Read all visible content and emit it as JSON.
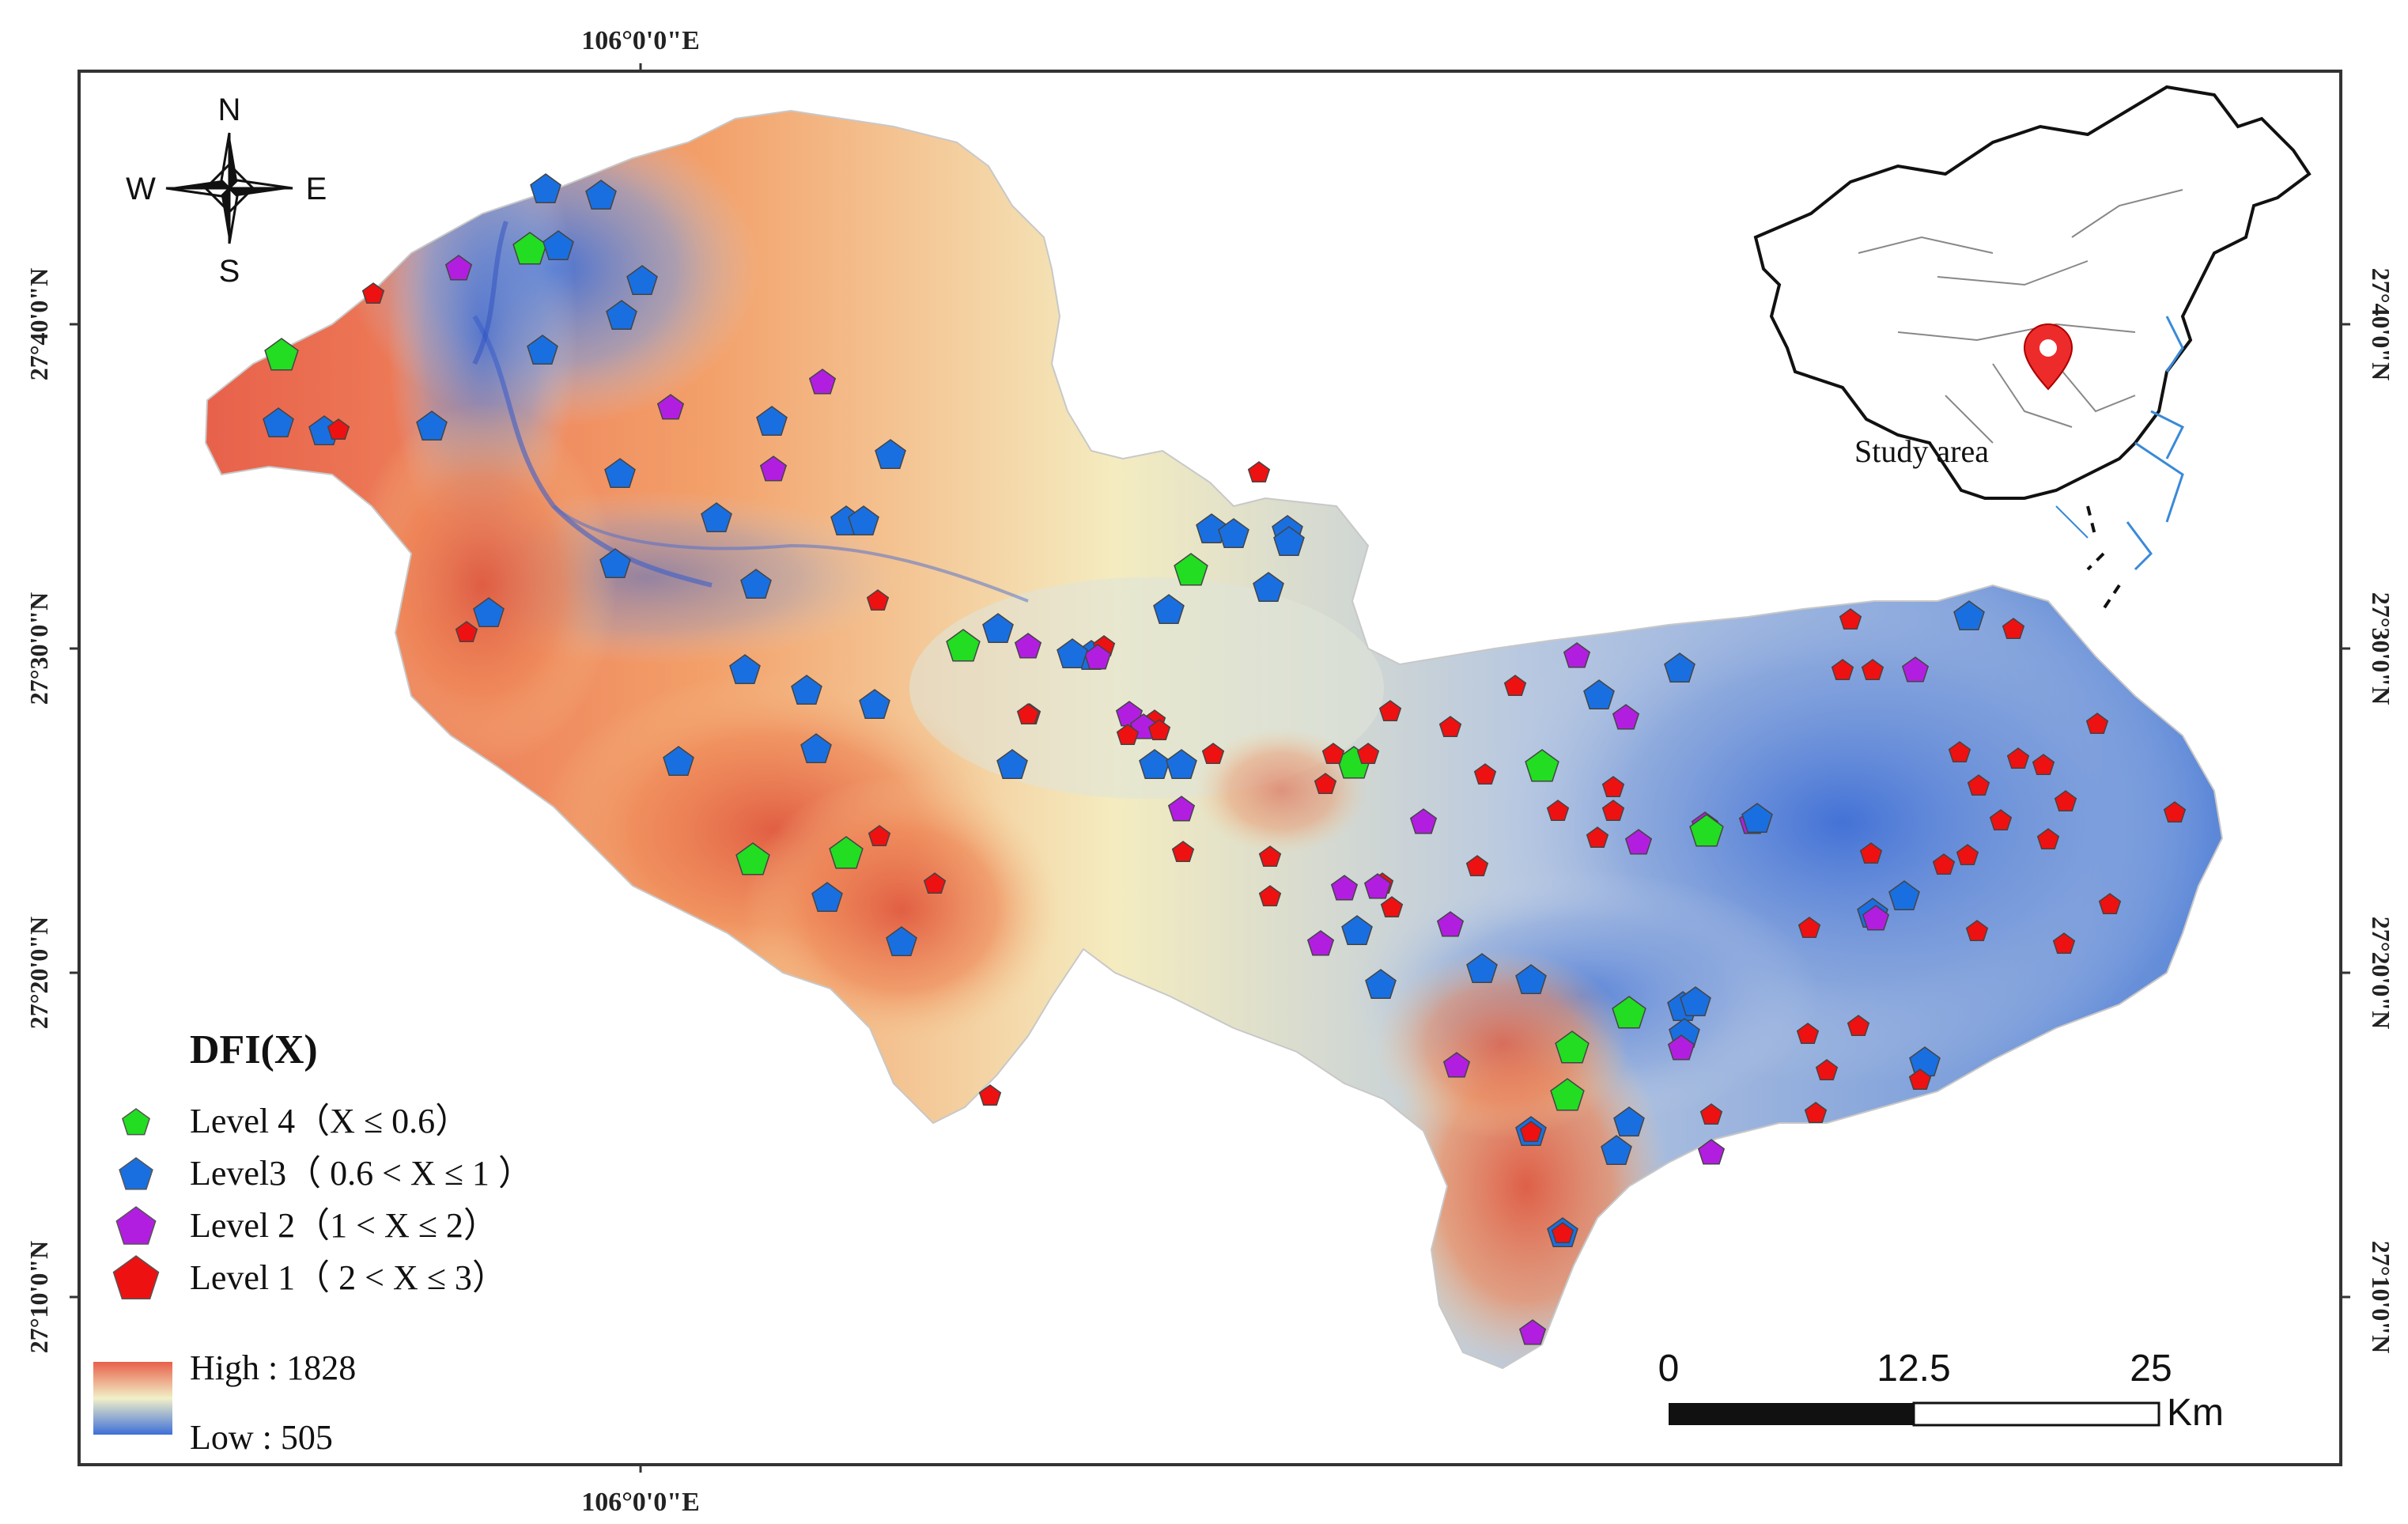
{
  "graticule": {
    "lon_label": "106°0'0\"E",
    "lat_labels": [
      "27°40'0\"N",
      "27°30'0\"N",
      "27°20'0\"N",
      "27°10'0\"N"
    ]
  },
  "compass": {
    "n": "N",
    "s": "S",
    "e": "E",
    "w": "W"
  },
  "inset": {
    "label": "Study area"
  },
  "legend": {
    "title": "DFI(X)",
    "items": [
      {
        "label": "Level 4（X ≤ 0.6）",
        "color": "#22dd22"
      },
      {
        "label": "Level3（ 0.6 < X ≤ 1 ）",
        "color": "#1a6fe0"
      },
      {
        "label": "Level 2（1 < X ≤ 2）",
        "color": "#b21ee0"
      },
      {
        "label": "Level 1（ 2 < X ≤ 3）",
        "color": "#ee1111"
      }
    ],
    "elevation_high": "High : 1828",
    "elevation_low": "Low : 505",
    "elevation_colors": {
      "high": "#e8604a",
      "mid": "#f2f0c8",
      "low": "#3d6fd8"
    }
  },
  "scale_bar": {
    "ticks": [
      "0",
      "12.5",
      "25"
    ],
    "unit": "Km"
  }
}
